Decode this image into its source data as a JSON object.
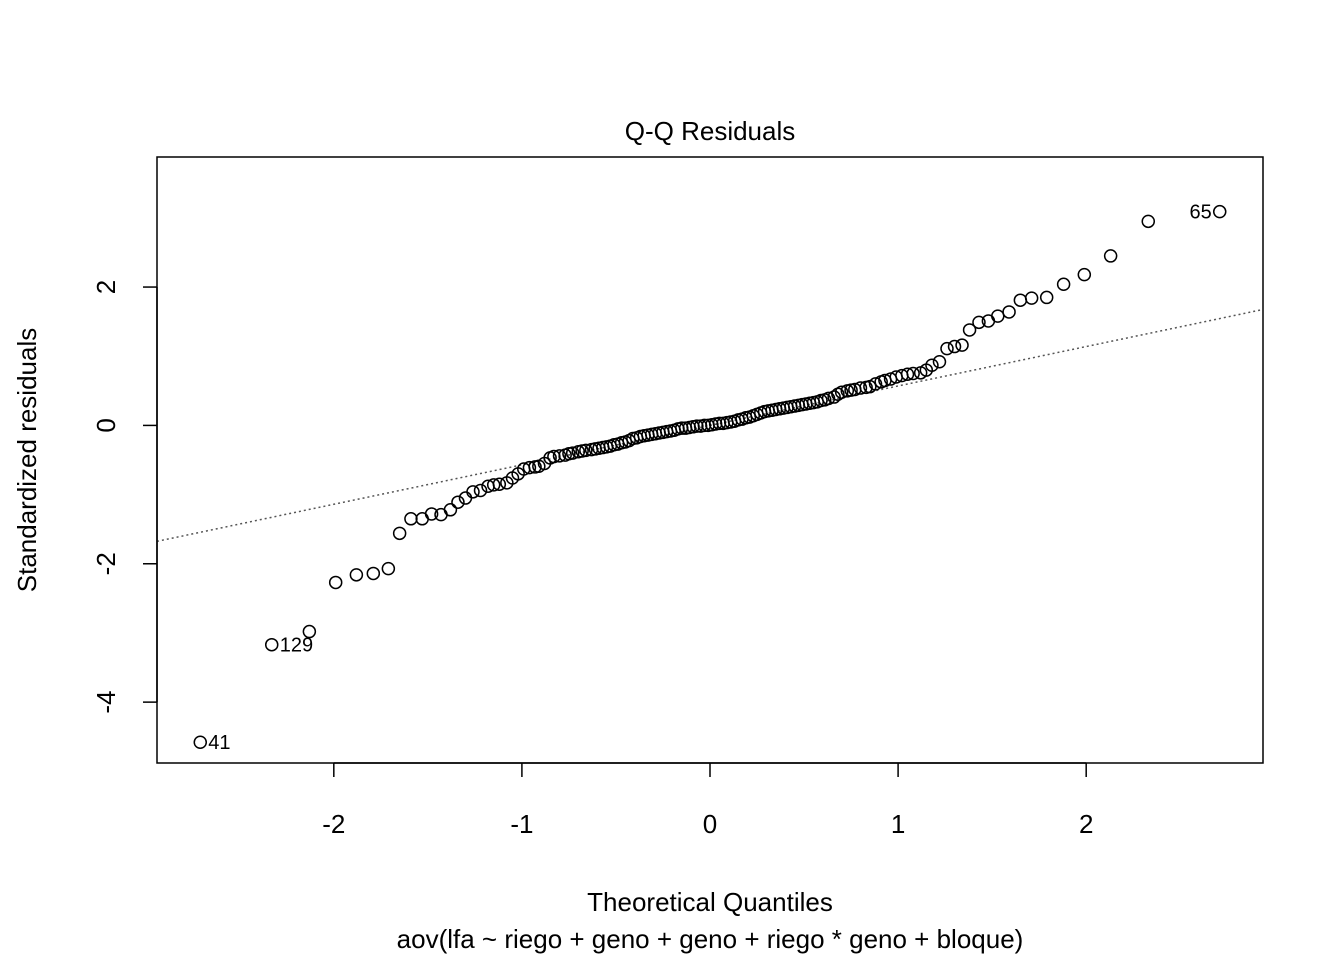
{
  "chart_data": {
    "type": "scatter",
    "title": "Q-Q Residuals",
    "xlabel": "Theoretical Quantiles",
    "ylabel": "Standardized residuals",
    "subtitle": "aov(lfa ~ riego + geno + geno + riego * geno + bloque)",
    "xlim": [
      -2.94,
      2.94
    ],
    "ylim": [
      -4.88,
      3.88
    ],
    "x_ticks": [
      -2,
      -1,
      0,
      1,
      2
    ],
    "x_tick_labels": [
      "-2",
      "-1",
      "0",
      "1",
      "2"
    ],
    "y_ticks": [
      -4,
      -2,
      0,
      2
    ],
    "y_tick_labels": [
      "-4",
      "-2",
      "0",
      "2"
    ],
    "grid": false,
    "reference_line": {
      "style": "dotted",
      "intercept": 0.0,
      "slope": 0.57
    },
    "labeled_points": [
      {
        "label": "65",
        "x": 2.71,
        "y": 3.09,
        "side": "left"
      },
      {
        "label": "129",
        "x": -2.33,
        "y": -3.17,
        "side": "right"
      },
      {
        "label": "41",
        "x": -2.71,
        "y": -4.58,
        "side": "right"
      }
    ],
    "points": [
      [
        -2.71,
        -4.58
      ],
      [
        -2.33,
        -3.17
      ],
      [
        -2.13,
        -2.98
      ],
      [
        -1.99,
        -2.27
      ],
      [
        -1.88,
        -2.16
      ],
      [
        -1.79,
        -2.14
      ],
      [
        -1.71,
        -2.07
      ],
      [
        -1.65,
        -1.56
      ],
      [
        -1.59,
        -1.35
      ],
      [
        -1.53,
        -1.35
      ],
      [
        -1.48,
        -1.28
      ],
      [
        -1.43,
        -1.29
      ],
      [
        -1.38,
        -1.22
      ],
      [
        -1.34,
        -1.11
      ],
      [
        -1.3,
        -1.05
      ],
      [
        -1.26,
        -0.96
      ],
      [
        -1.22,
        -0.94
      ],
      [
        -1.18,
        -0.88
      ],
      [
        -1.15,
        -0.86
      ],
      [
        -1.12,
        -0.85
      ],
      [
        -1.08,
        -0.83
      ],
      [
        -1.05,
        -0.76
      ],
      [
        -1.02,
        -0.7
      ],
      [
        -0.99,
        -0.63
      ],
      [
        -0.96,
        -0.61
      ],
      [
        -0.93,
        -0.6
      ],
      [
        -0.91,
        -0.59
      ],
      [
        -0.88,
        -0.55
      ],
      [
        -0.85,
        -0.47
      ],
      [
        -0.83,
        -0.45
      ],
      [
        -0.8,
        -0.44
      ],
      [
        -0.77,
        -0.43
      ],
      [
        -0.75,
        -0.41
      ],
      [
        -0.73,
        -0.4
      ],
      [
        -0.7,
        -0.38
      ],
      [
        -0.68,
        -0.37
      ],
      [
        -0.66,
        -0.36
      ],
      [
        -0.63,
        -0.35
      ],
      [
        -0.61,
        -0.34
      ],
      [
        -0.59,
        -0.33
      ],
      [
        -0.57,
        -0.32
      ],
      [
        -0.55,
        -0.31
      ],
      [
        -0.53,
        -0.3
      ],
      [
        -0.51,
        -0.28
      ],
      [
        -0.49,
        -0.27
      ],
      [
        -0.47,
        -0.25
      ],
      [
        -0.45,
        -0.24
      ],
      [
        -0.43,
        -0.22
      ],
      [
        -0.41,
        -0.19
      ],
      [
        -0.39,
        -0.18
      ],
      [
        -0.37,
        -0.16
      ],
      [
        -0.35,
        -0.15
      ],
      [
        -0.33,
        -0.14
      ],
      [
        -0.31,
        -0.13
      ],
      [
        -0.29,
        -0.12
      ],
      [
        -0.27,
        -0.11
      ],
      [
        -0.25,
        -0.1
      ],
      [
        -0.23,
        -0.09
      ],
      [
        -0.21,
        -0.08
      ],
      [
        -0.19,
        -0.07
      ],
      [
        -0.17,
        -0.05
      ],
      [
        -0.15,
        -0.04
      ],
      [
        -0.13,
        -0.04
      ],
      [
        -0.11,
        -0.03
      ],
      [
        -0.09,
        -0.02
      ],
      [
        -0.07,
        -0.01
      ],
      [
        -0.05,
        -0.01
      ],
      [
        -0.03,
        0.0
      ],
      [
        -0.01,
        0.0
      ],
      [
        0.01,
        0.01
      ],
      [
        0.03,
        0.02
      ],
      [
        0.05,
        0.03
      ],
      [
        0.07,
        0.03
      ],
      [
        0.09,
        0.04
      ],
      [
        0.11,
        0.05
      ],
      [
        0.13,
        0.06
      ],
      [
        0.15,
        0.08
      ],
      [
        0.17,
        0.09
      ],
      [
        0.19,
        0.11
      ],
      [
        0.21,
        0.12
      ],
      [
        0.23,
        0.14
      ],
      [
        0.25,
        0.16
      ],
      [
        0.27,
        0.18
      ],
      [
        0.29,
        0.2
      ],
      [
        0.31,
        0.21
      ],
      [
        0.33,
        0.22
      ],
      [
        0.35,
        0.23
      ],
      [
        0.37,
        0.24
      ],
      [
        0.39,
        0.25
      ],
      [
        0.41,
        0.26
      ],
      [
        0.43,
        0.27
      ],
      [
        0.45,
        0.28
      ],
      [
        0.47,
        0.29
      ],
      [
        0.49,
        0.3
      ],
      [
        0.51,
        0.31
      ],
      [
        0.53,
        0.32
      ],
      [
        0.55,
        0.33
      ],
      [
        0.57,
        0.34
      ],
      [
        0.59,
        0.36
      ],
      [
        0.61,
        0.37
      ],
      [
        0.63,
        0.39
      ],
      [
        0.66,
        0.41
      ],
      [
        0.68,
        0.45
      ],
      [
        0.7,
        0.48
      ],
      [
        0.73,
        0.5
      ],
      [
        0.75,
        0.51
      ],
      [
        0.77,
        0.52
      ],
      [
        0.8,
        0.54
      ],
      [
        0.83,
        0.55
      ],
      [
        0.85,
        0.56
      ],
      [
        0.88,
        0.6
      ],
      [
        0.91,
        0.63
      ],
      [
        0.93,
        0.65
      ],
      [
        0.96,
        0.67
      ],
      [
        0.99,
        0.7
      ],
      [
        1.02,
        0.72
      ],
      [
        1.05,
        0.74
      ],
      [
        1.08,
        0.75
      ],
      [
        1.12,
        0.76
      ],
      [
        1.15,
        0.8
      ],
      [
        1.18,
        0.87
      ],
      [
        1.22,
        0.92
      ],
      [
        1.26,
        1.11
      ],
      [
        1.3,
        1.14
      ],
      [
        1.34,
        1.16
      ],
      [
        1.38,
        1.38
      ],
      [
        1.43,
        1.49
      ],
      [
        1.48,
        1.51
      ],
      [
        1.53,
        1.58
      ],
      [
        1.59,
        1.64
      ],
      [
        1.65,
        1.81
      ],
      [
        1.71,
        1.84
      ],
      [
        1.79,
        1.85
      ],
      [
        1.88,
        2.04
      ],
      [
        1.99,
        2.18
      ],
      [
        2.13,
        2.45
      ],
      [
        2.33,
        2.95
      ],
      [
        2.71,
        3.09
      ]
    ]
  }
}
